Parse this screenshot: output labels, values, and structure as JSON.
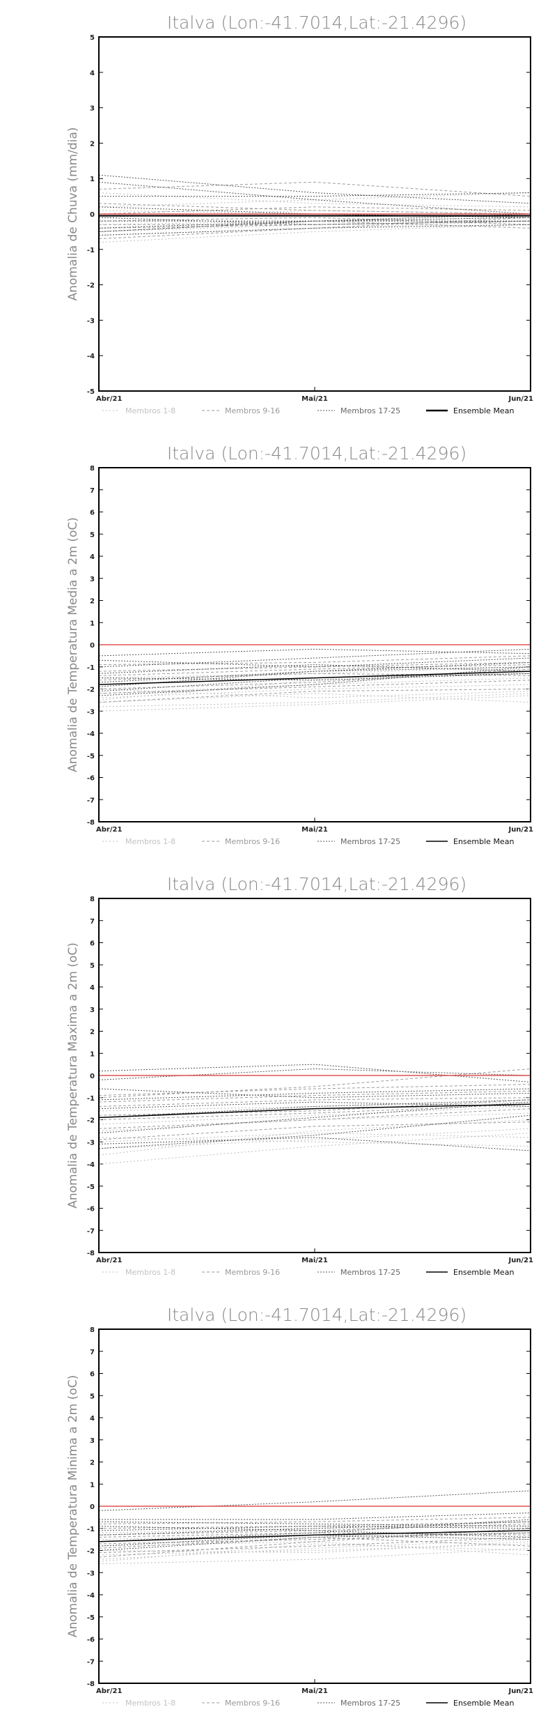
{
  "chart_data": [
    {
      "type": "line",
      "title": "Italva (Lon:-41.7014,Lat:-21.4296)",
      "ylabel": "Anomalia de Chuva (mm/dia)",
      "xlabel": "",
      "categories": [
        "Abr/21",
        "Mai/21",
        "Jun/21"
      ],
      "ylim": [
        -5,
        5
      ],
      "yticks": [
        -5,
        -4,
        -3,
        -2,
        -1,
        0,
        1,
        2,
        3,
        4,
        5
      ],
      "reference_line": {
        "y": 0,
        "color": "#e05050"
      },
      "series": [
        {
          "group": 0,
          "values": [
            -0.3,
            -0.2,
            -0.1
          ]
        },
        {
          "group": 0,
          "values": [
            -0.5,
            -0.3,
            -0.2
          ]
        },
        {
          "group": 0,
          "values": [
            0.2,
            0.4,
            0.6
          ]
        },
        {
          "group": 0,
          "values": [
            -0.8,
            -0.5,
            -0.3
          ]
        },
        {
          "group": 0,
          "values": [
            0.6,
            0.3,
            0.2
          ]
        },
        {
          "group": 0,
          "values": [
            -0.1,
            0.1,
            0.0
          ]
        },
        {
          "group": 0,
          "values": [
            -0.6,
            -0.4,
            -0.2
          ]
        },
        {
          "group": 0,
          "values": [
            0.1,
            0.0,
            -0.1
          ]
        },
        {
          "group": 1,
          "values": [
            -0.4,
            -0.3,
            -0.2
          ]
        },
        {
          "group": 1,
          "values": [
            0.7,
            0.9,
            0.5
          ]
        },
        {
          "group": 1,
          "values": [
            -0.2,
            -0.1,
            -0.3
          ]
        },
        {
          "group": 1,
          "values": [
            -0.7,
            -0.4,
            -0.1
          ]
        },
        {
          "group": 1,
          "values": [
            0.3,
            0.1,
            0.0
          ]
        },
        {
          "group": 1,
          "values": [
            -0.5,
            -0.2,
            -0.4
          ]
        },
        {
          "group": 1,
          "values": [
            0.0,
            0.2,
            0.1
          ]
        },
        {
          "group": 1,
          "values": [
            -0.3,
            -0.3,
            -0.2
          ]
        },
        {
          "group": 2,
          "values": [
            1.1,
            0.6,
            0.3
          ]
        },
        {
          "group": 2,
          "values": [
            -0.4,
            -0.2,
            -0.1
          ]
        },
        {
          "group": 2,
          "values": [
            0.2,
            0.0,
            -0.1
          ]
        },
        {
          "group": 2,
          "values": [
            -0.6,
            -0.4,
            -0.3
          ]
        },
        {
          "group": 2,
          "values": [
            0.5,
            0.5,
            0.6
          ]
        },
        {
          "group": 2,
          "values": [
            -0.2,
            -0.2,
            -0.2
          ]
        },
        {
          "group": 2,
          "values": [
            0.9,
            0.4,
            0.0
          ]
        },
        {
          "group": 2,
          "values": [
            -0.1,
            -0.3,
            -0.2
          ]
        },
        {
          "group": 2,
          "values": [
            -0.5,
            -0.2,
            0.0
          ]
        }
      ],
      "mean": [
        -0.05,
        -0.05,
        -0.05
      ],
      "legend": [
        "Membros 1-8",
        "Membros 9-16",
        "Membros 17-25",
        "Ensemble Mean"
      ]
    },
    {
      "type": "line",
      "title": "Italva (Lon:-41.7014,Lat:-21.4296)",
      "ylabel": "Anomalia de Temperatura Media a 2m (oC)",
      "xlabel": "",
      "categories": [
        "Abr/21",
        "Mai/21",
        "Jun/21"
      ],
      "ylim": [
        -8,
        8
      ],
      "yticks": [
        -8,
        -7,
        -6,
        -5,
        -4,
        -3,
        -2,
        -1,
        0,
        1,
        2,
        3,
        4,
        5,
        6,
        7,
        8
      ],
      "reference_line": {
        "y": 0,
        "color": "#e05050"
      },
      "series": [
        {
          "group": 0,
          "values": [
            -2.8,
            -2.6,
            -2.2
          ]
        },
        {
          "group": 0,
          "values": [
            -2.4,
            -2.0,
            -1.8
          ]
        },
        {
          "group": 0,
          "values": [
            -2.6,
            -2.2,
            -2.6
          ]
        },
        {
          "group": 0,
          "values": [
            -3.0,
            -2.7,
            -2.3
          ]
        },
        {
          "group": 0,
          "values": [
            -2.2,
            -1.8,
            -1.5
          ]
        },
        {
          "group": 0,
          "values": [
            -1.5,
            -1.3,
            -1.0
          ]
        },
        {
          "group": 0,
          "values": [
            -2.0,
            -2.4,
            -2.1
          ]
        },
        {
          "group": 0,
          "values": [
            -2.5,
            -1.6,
            -1.3
          ]
        },
        {
          "group": 1,
          "values": [
            -1.8,
            -1.5,
            -1.2
          ]
        },
        {
          "group": 1,
          "values": [
            -2.2,
            -1.9,
            -1.6
          ]
        },
        {
          "group": 1,
          "values": [
            -1.2,
            -1.0,
            -0.8
          ]
        },
        {
          "group": 1,
          "values": [
            -2.6,
            -2.1,
            -2.0
          ]
        },
        {
          "group": 1,
          "values": [
            -1.6,
            -1.3,
            -1.4
          ]
        },
        {
          "group": 1,
          "values": [
            -0.9,
            -0.8,
            -0.5
          ]
        },
        {
          "group": 1,
          "values": [
            -2.0,
            -1.7,
            -1.1
          ]
        },
        {
          "group": 1,
          "values": [
            -1.4,
            -1.1,
            -0.9
          ]
        },
        {
          "group": 2,
          "values": [
            -0.5,
            -0.2,
            -0.4
          ]
        },
        {
          "group": 2,
          "values": [
            -1.0,
            -0.6,
            -0.2
          ]
        },
        {
          "group": 2,
          "values": [
            -1.7,
            -1.2,
            -1.0
          ]
        },
        {
          "group": 2,
          "values": [
            -1.3,
            -0.9,
            -1.2
          ]
        },
        {
          "group": 2,
          "values": [
            -2.1,
            -1.5,
            -1.3
          ]
        },
        {
          "group": 2,
          "values": [
            -0.7,
            -1.0,
            -0.6
          ]
        },
        {
          "group": 2,
          "values": [
            -1.9,
            -1.2,
            -0.8
          ]
        },
        {
          "group": 2,
          "values": [
            -1.5,
            -1.6,
            -1.3
          ]
        },
        {
          "group": 2,
          "values": [
            -2.3,
            -1.8,
            -1.0
          ]
        }
      ],
      "mean": [
        -1.8,
        -1.5,
        -1.2
      ],
      "legend": [
        "Membros 1-8",
        "Membros 9-16",
        "Membros 17-25",
        "Ensemble Mean"
      ]
    },
    {
      "type": "line",
      "title": "Italva (Lon:-41.7014,Lat:-21.4296)",
      "ylabel": "Anomalia de Temperatura Maxima a 2m (oC)",
      "xlabel": "",
      "categories": [
        "Abr/21",
        "Mai/21",
        "Jun/21"
      ],
      "ylim": [
        -8,
        8
      ],
      "yticks": [
        -8,
        -7,
        -6,
        -5,
        -4,
        -3,
        -2,
        -1,
        0,
        1,
        2,
        3,
        4,
        5,
        6,
        7,
        8
      ],
      "reference_line": {
        "y": 0,
        "color": "#e05050"
      },
      "series": [
        {
          "group": 0,
          "values": [
            -4.0,
            -3.2,
            -2.6
          ]
        },
        {
          "group": 0,
          "values": [
            -3.3,
            -2.9,
            -2.4
          ]
        },
        {
          "group": 0,
          "values": [
            -2.8,
            -3.0,
            -3.2
          ]
        },
        {
          "group": 0,
          "values": [
            -3.6,
            -2.5,
            -2.0
          ]
        },
        {
          "group": 0,
          "values": [
            -2.2,
            -1.8,
            -1.4
          ]
        },
        {
          "group": 0,
          "values": [
            -1.6,
            -1.4,
            -1.2
          ]
        },
        {
          "group": 0,
          "values": [
            -3.0,
            -2.6,
            -2.8
          ]
        },
        {
          "group": 0,
          "values": [
            -2.5,
            -2.0,
            -1.7
          ]
        },
        {
          "group": 1,
          "values": [
            -1.8,
            -1.6,
            -1.1
          ]
        },
        {
          "group": 1,
          "values": [
            -2.4,
            -2.0,
            -1.5
          ]
        },
        {
          "group": 1,
          "values": [
            -1.2,
            -0.9,
            -0.7
          ]
        },
        {
          "group": 1,
          "values": [
            -2.9,
            -2.3,
            -2.1
          ]
        },
        {
          "group": 1,
          "values": [
            -1.4,
            -1.1,
            -1.0
          ]
        },
        {
          "group": 1,
          "values": [
            -0.9,
            -0.6,
            -0.4
          ]
        },
        {
          "group": 1,
          "values": [
            -2.0,
            -1.7,
            -1.3
          ]
        },
        {
          "group": 1,
          "values": [
            -1.0,
            -0.5,
            0.3
          ]
        },
        {
          "group": 2,
          "values": [
            0.2,
            0.5,
            -0.3
          ]
        },
        {
          "group": 2,
          "values": [
            -0.2,
            0.3,
            0.0
          ]
        },
        {
          "group": 2,
          "values": [
            -1.1,
            -0.8,
            -0.6
          ]
        },
        {
          "group": 2,
          "values": [
            -3.3,
            -2.7,
            -1.8
          ]
        },
        {
          "group": 2,
          "values": [
            -1.5,
            -1.2,
            -1.4
          ]
        },
        {
          "group": 2,
          "values": [
            -2.6,
            -1.9,
            -1.2
          ]
        },
        {
          "group": 2,
          "values": [
            -0.6,
            -1.0,
            -0.8
          ]
        },
        {
          "group": 2,
          "values": [
            -3.1,
            -2.8,
            -3.4
          ]
        },
        {
          "group": 2,
          "values": [
            -1.9,
            -1.4,
            -1.1
          ]
        }
      ],
      "mean": [
        -1.9,
        -1.5,
        -1.3
      ],
      "legend": [
        "Membros 1-8",
        "Membros 9-16",
        "Membros 17-25",
        "Ensemble Mean"
      ]
    },
    {
      "type": "line",
      "title": "Italva (Lon:-41.7014,Lat:-21.4296)",
      "ylabel": "Anomalia de Temperatura Minima a 2m (oC)",
      "xlabel": "",
      "categories": [
        "Abr/21",
        "Mai/21",
        "Jun/21"
      ],
      "ylim": [
        -8,
        8
      ],
      "yticks": [
        -8,
        -7,
        -6,
        -5,
        -4,
        -3,
        -2,
        -1,
        0,
        1,
        2,
        3,
        4,
        5,
        6,
        7,
        8
      ],
      "reference_line": {
        "y": 0,
        "color": "#e05050"
      },
      "series": [
        {
          "group": 0,
          "values": [
            -2.6,
            -2.4,
            -1.9
          ]
        },
        {
          "group": 0,
          "values": [
            -2.2,
            -2.0,
            -1.7
          ]
        },
        {
          "group": 0,
          "values": [
            -1.8,
            -1.6,
            -2.2
          ]
        },
        {
          "group": 0,
          "values": [
            -2.4,
            -1.9,
            -1.5
          ]
        },
        {
          "group": 0,
          "values": [
            -1.5,
            -1.3,
            -1.1
          ]
        },
        {
          "group": 0,
          "values": [
            -2.0,
            -2.1,
            -1.6
          ]
        },
        {
          "group": 0,
          "values": [
            -1.2,
            -1.0,
            -0.9
          ]
        },
        {
          "group": 0,
          "values": [
            -2.5,
            -1.7,
            -2.0
          ]
        },
        {
          "group": 1,
          "values": [
            -1.7,
            -1.5,
            -1.2
          ]
        },
        {
          "group": 1,
          "values": [
            -2.1,
            -1.8,
            -1.4
          ]
        },
        {
          "group": 1,
          "values": [
            -1.0,
            -0.9,
            -0.7
          ]
        },
        {
          "group": 1,
          "values": [
            -1.4,
            -1.2,
            -1.3
          ]
        },
        {
          "group": 1,
          "values": [
            -2.3,
            -1.6,
            -1.0
          ]
        },
        {
          "group": 1,
          "values": [
            -0.8,
            -0.7,
            -0.5
          ]
        },
        {
          "group": 1,
          "values": [
            -1.9,
            -1.4,
            -1.8
          ]
        },
        {
          "group": 1,
          "values": [
            -1.3,
            -1.1,
            -0.8
          ]
        },
        {
          "group": 2,
          "values": [
            -0.2,
            0.2,
            0.7
          ]
        },
        {
          "group": 2,
          "values": [
            -0.6,
            -0.6,
            -0.3
          ]
        },
        {
          "group": 2,
          "values": [
            -1.1,
            -0.9,
            -1.0
          ]
        },
        {
          "group": 2,
          "values": [
            -1.6,
            -1.2,
            -0.6
          ]
        },
        {
          "group": 2,
          "values": [
            -0.9,
            -1.1,
            -1.4
          ]
        },
        {
          "group": 2,
          "values": [
            -2.0,
            -1.4,
            -1.2
          ]
        },
        {
          "group": 2,
          "values": [
            -1.3,
            -1.0,
            -0.7
          ]
        },
        {
          "group": 2,
          "values": [
            -1.8,
            -1.3,
            -1.5
          ]
        },
        {
          "group": 2,
          "values": [
            -0.7,
            -0.8,
            -0.9
          ]
        }
      ],
      "mean": [
        -1.6,
        -1.3,
        -1.1
      ],
      "legend": [
        "Membros 1-8",
        "Membros 9-16",
        "Membros 17-25",
        "Ensemble Mean"
      ]
    }
  ],
  "styles": {
    "axis_color": "#000000",
    "title_color": "#888888",
    "reference_color": "#e05050",
    "group_colors": [
      "#bdbdbd",
      "#9a9a9a",
      "#555555"
    ],
    "mean_color": "#000000"
  }
}
